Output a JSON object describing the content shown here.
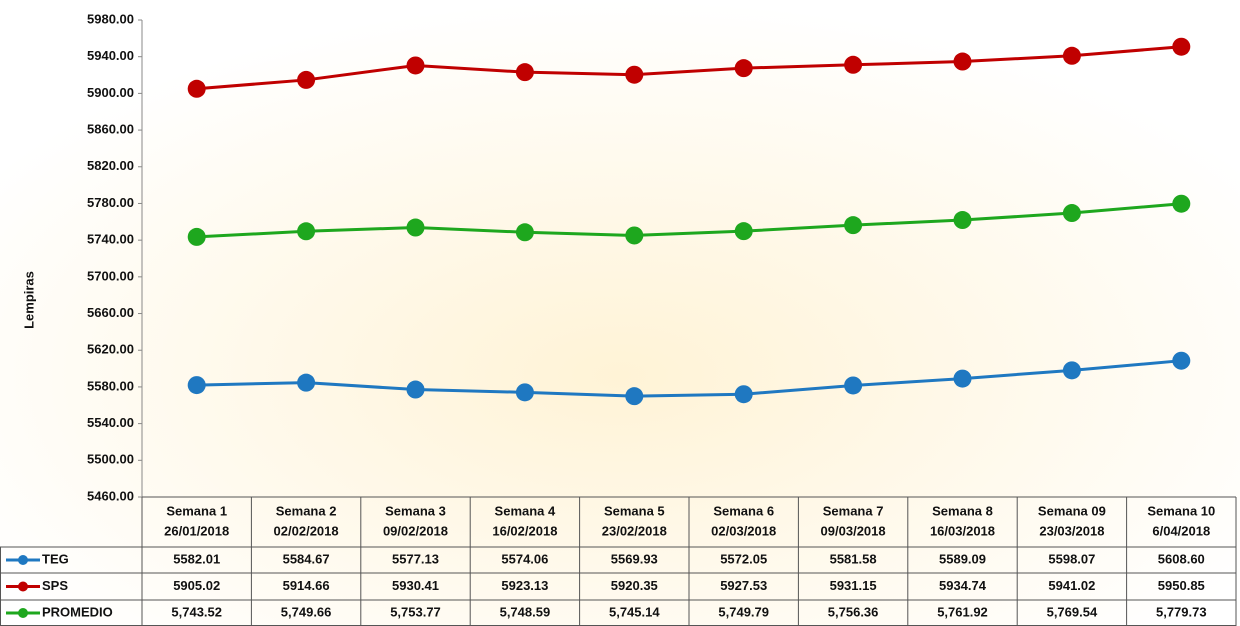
{
  "chart_data": {
    "type": "line",
    "y_label": "Lempiras",
    "categories": [
      [
        "Semana 1",
        "26/01/2018"
      ],
      [
        "Semana 2",
        "02/02/2018"
      ],
      [
        "Semana 3",
        "09/02/2018"
      ],
      [
        "Semana 4",
        "16/02/2018"
      ],
      [
        "Semana 5",
        "23/02/2018"
      ],
      [
        "Semana 6",
        "02/03/2018"
      ],
      [
        "Semana 7",
        "09/03/2018"
      ],
      [
        "Semana 8",
        "16/03/2018"
      ],
      [
        "Semana 09",
        "23/03/2018"
      ],
      [
        "Semana 10",
        "6/04/2018"
      ]
    ],
    "series": [
      {
        "name": "TEG",
        "color": "#1f78c1",
        "values": [
          5582.01,
          5584.67,
          5577.13,
          5574.06,
          5569.93,
          5572.05,
          5581.58,
          5589.09,
          5598.07,
          5608.6
        ],
        "value_labels": [
          "5582.01",
          "5584.67",
          "5577.13",
          "5574.06",
          "5569.93",
          "5572.05",
          "5581.58",
          "5589.09",
          "5598.07",
          "5608.60"
        ]
      },
      {
        "name": "SPS",
        "color": "#c00000",
        "values": [
          5905.02,
          5914.66,
          5930.41,
          5923.13,
          5920.35,
          5927.53,
          5931.15,
          5934.74,
          5941.02,
          5950.85
        ],
        "value_labels": [
          "5905.02",
          "5914.66",
          "5930.41",
          "5923.13",
          "5920.35",
          "5927.53",
          "5931.15",
          "5934.74",
          "5941.02",
          "5950.85"
        ]
      },
      {
        "name": "PROMEDIO",
        "color": "#1ea71e",
        "values": [
          5743.52,
          5749.66,
          5753.77,
          5748.59,
          5745.14,
          5749.79,
          5756.36,
          5761.92,
          5769.54,
          5779.73
        ],
        "value_labels": [
          "5,743.52",
          "5,749.66",
          "5,753.77",
          "5,748.59",
          "5,745.14",
          "5,749.79",
          "5,756.36",
          "5,761.92",
          "5,769.54",
          "5,779.73"
        ]
      }
    ],
    "ylim": [
      5460,
      5980
    ],
    "yticks": [
      {
        "value": 5460,
        "label": "5460.00"
      },
      {
        "value": 5500,
        "label": "5500.00"
      },
      {
        "value": 5540,
        "label": "5540.00"
      },
      {
        "value": 5580,
        "label": "5580.00"
      },
      {
        "value": 5620,
        "label": "5620.00"
      },
      {
        "value": 5660,
        "label": "5660.00"
      },
      {
        "value": 5700,
        "label": "5700.00"
      },
      {
        "value": 5740,
        "label": "5740.00"
      },
      {
        "value": 5780,
        "label": "5780.00"
      },
      {
        "value": 5820,
        "label": "5820.00"
      },
      {
        "value": 5860,
        "label": "5860.00"
      },
      {
        "value": 5900,
        "label": "5900.00"
      },
      {
        "value": 5940,
        "label": "5940.00"
      },
      {
        "value": 5980,
        "label": "5980.00"
      }
    ]
  }
}
